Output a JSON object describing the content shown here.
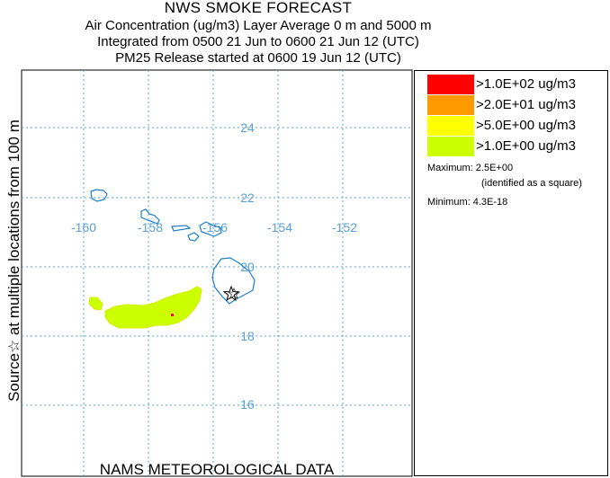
{
  "header": {
    "title": "NWS SMOKE FORECAST",
    "line2": "Air Concentration (ug/m3) Layer Average    0 m and  5000 m",
    "line3": "Integrated from 0500 21 Jun to 0600 21 Jun 12 (UTC)",
    "line4": "PM25 Release started at 0600 19 Jun 12 (UTC)"
  },
  "side_label": "Source☆ at multiple locations    from   100 m",
  "footer": "NAMS METEOROLOGICAL DATA",
  "map": {
    "lon_labels": [
      "-160",
      "-158",
      "-156",
      "-154",
      "-152"
    ],
    "lat_labels": [
      "24",
      "22",
      "20",
      "18",
      "16"
    ],
    "grid_color": "#5aa0d8",
    "coast_color": "#1e7ec8",
    "plume_color": "#ccff00",
    "source_marker": "star-icon"
  },
  "legend": {
    "items": [
      {
        "label": ">1.0E+02 ug/m3",
        "color": "#ff0000"
      },
      {
        "label": ">2.0E+01 ug/m3",
        "color": "#ff9900"
      },
      {
        "label": ">5.0E+00 ug/m3",
        "color": "#ffff00"
      },
      {
        "label": ">1.0E+00 ug/m3",
        "color": "#ccff00"
      }
    ],
    "maximum": "Maximum: 2.5E+00",
    "max_note": "(identified as a square)",
    "minimum": "Minimum: 4.3E-18"
  }
}
